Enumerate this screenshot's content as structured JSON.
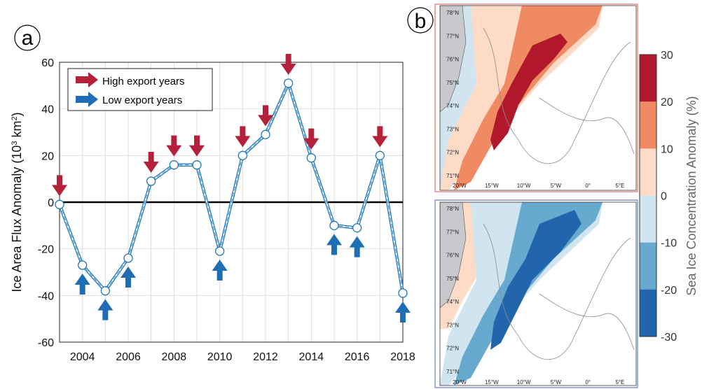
{
  "panel_labels": {
    "a": "a",
    "b": "b"
  },
  "legend": {
    "high": "High export years",
    "low": "Low export years",
    "high_color": "#b5203a",
    "low_color": "#1f6db5"
  },
  "map_lat_labels": [
    "78°N",
    "77°N",
    "76°N",
    "75°N",
    "74°N",
    "73°N",
    "72°N",
    "71°N"
  ],
  "map_lon_labels": [
    "20°W",
    "15°W",
    "10°W",
    "5°W",
    "0°",
    "5°E"
  ],
  "colorbar": {
    "label": "Sea Ice Concentration Anomaly (%)",
    "ticks": [
      "30",
      "20",
      "10",
      "0",
      "-10",
      "-20",
      "-30"
    ],
    "colors": [
      "#b2182b",
      "#ef8a62",
      "#fddbc7",
      "#d1e5f0",
      "#67a9cf",
      "#2166ac"
    ]
  },
  "colors": {
    "line": "#1f77b4",
    "zero_line": "#000000",
    "high_frame": "#d9534f",
    "low_frame": "#3b6db3",
    "land": "#c7c9cc"
  },
  "chart_data": {
    "type": "line",
    "title": "",
    "xlabel": "",
    "ylabel_parts": [
      "Ice Area Flux Anomaly (10",
      "3",
      " km",
      "2",
      ")"
    ],
    "xlim": [
      2003,
      2018
    ],
    "ylim": [
      -60,
      60
    ],
    "x_ticks": [
      "2004",
      "2006",
      "2008",
      "2010",
      "2012",
      "2014",
      "2016",
      "2018"
    ],
    "y_ticks": [
      "60",
      "40",
      "20",
      "0",
      "-20",
      "-40",
      "-60"
    ],
    "grid": true,
    "legend_position": "top-left",
    "series": [
      {
        "x": [
          2003,
          2004,
          2005,
          2006,
          2007,
          2008,
          2009,
          2010,
          2011,
          2012,
          2013,
          2014,
          2015,
          2016,
          2017,
          2018
        ],
        "values": [
          -1,
          -27,
          -38,
          -24,
          9,
          16,
          16,
          -21,
          20,
          29,
          51,
          19,
          -10,
          -11,
          20,
          -39
        ]
      }
    ],
    "high_export_years": [
      2003,
      2007,
      2008,
      2009,
      2011,
      2012,
      2013,
      2014,
      2017
    ],
    "low_export_years": [
      2004,
      2005,
      2006,
      2010,
      2015,
      2016,
      2018
    ]
  }
}
